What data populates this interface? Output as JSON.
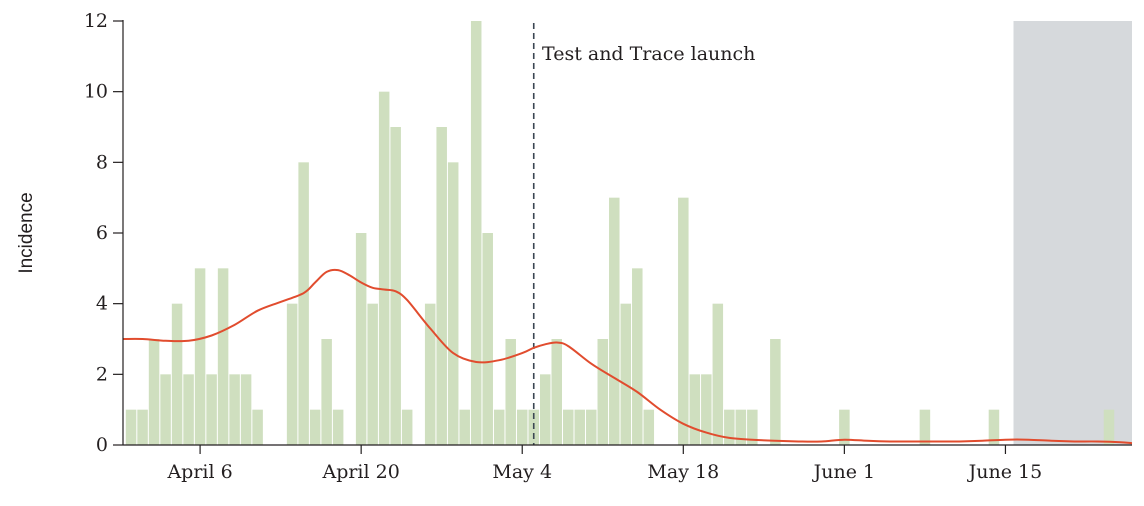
{
  "chart_data": {
    "type": "bar",
    "ylabel": "Incidence",
    "ylim": [
      0,
      12
    ],
    "yticks": [
      0,
      2,
      4,
      6,
      8,
      10,
      12
    ],
    "x_start": "March 31",
    "xlim_days": [
      -0.7,
      87
    ],
    "xticks": [
      {
        "label": "April 6",
        "day": 6
      },
      {
        "label": "April 20",
        "day": 20
      },
      {
        "label": "May 4",
        "day": 34
      },
      {
        "label": "May 18",
        "day": 48
      },
      {
        "label": "June 1",
        "day": 62
      },
      {
        "label": "June 15",
        "day": 76
      }
    ],
    "series": [
      {
        "kind": "bar",
        "color": "#cfdfbf",
        "values": [
          1,
          1,
          3,
          2,
          4,
          2,
          5,
          2,
          5,
          2,
          2,
          1,
          0,
          0,
          4,
          8,
          1,
          3,
          1,
          0,
          6,
          4,
          10,
          9,
          1,
          0,
          4,
          9,
          8,
          1,
          12,
          6,
          1,
          3,
          1,
          1,
          2,
          3,
          1,
          1,
          1,
          3,
          7,
          4,
          5,
          1,
          0,
          0,
          7,
          2,
          2,
          4,
          1,
          1,
          1,
          0,
          3,
          0,
          0,
          0,
          0,
          0,
          1,
          0,
          0,
          0,
          0,
          0,
          0,
          1,
          0,
          0,
          0,
          0,
          0,
          1,
          0,
          0,
          0,
          0,
          0,
          0,
          0,
          0,
          0,
          1,
          0
        ]
      },
      {
        "kind": "line",
        "color": "#e14c2e",
        "x": [
          -0.7,
          1,
          3,
          5,
          7,
          9,
          11,
          13,
          15,
          16,
          17,
          18,
          19,
          20,
          21,
          22,
          23,
          24,
          26,
          28,
          30,
          32,
          34,
          35,
          36,
          37,
          38,
          40,
          42,
          44,
          46,
          48,
          50,
          52,
          54,
          56,
          58,
          60,
          62,
          64,
          66,
          68,
          70,
          72,
          74,
          76,
          78,
          80,
          82,
          84,
          86,
          87
        ],
        "y": [
          3.0,
          3.0,
          2.95,
          2.95,
          3.1,
          3.4,
          3.8,
          4.05,
          4.3,
          4.6,
          4.9,
          4.95,
          4.8,
          4.6,
          4.45,
          4.4,
          4.35,
          4.1,
          3.3,
          2.6,
          2.35,
          2.4,
          2.6,
          2.75,
          2.85,
          2.9,
          2.8,
          2.3,
          1.9,
          1.5,
          1.0,
          0.6,
          0.35,
          0.2,
          0.15,
          0.12,
          0.1,
          0.1,
          0.15,
          0.12,
          0.1,
          0.1,
          0.1,
          0.1,
          0.12,
          0.15,
          0.15,
          0.12,
          0.1,
          0.1,
          0.08,
          0.05
        ]
      }
    ],
    "annotations": [
      {
        "type": "vline",
        "day": 35,
        "style": "dashed",
        "color": "#3b4652",
        "label": "Test and Trace launch"
      },
      {
        "type": "shaded_region",
        "from_day": 76.7,
        "to_day": 87,
        "color": "#d6d9dc"
      }
    ]
  }
}
